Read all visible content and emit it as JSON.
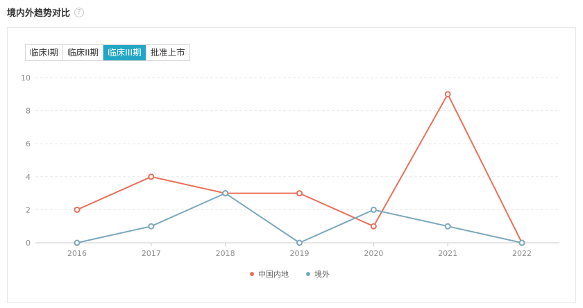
{
  "section": {
    "title": "境内外趋势对比",
    "help_icon": "question-circle-icon"
  },
  "tabs": [
    {
      "label": "临床I期",
      "active": false
    },
    {
      "label": "临床II期",
      "active": false
    },
    {
      "label": "临床III期",
      "active": true
    },
    {
      "label": "批准上市",
      "active": false
    }
  ],
  "colors": {
    "mainland": "#e8705a",
    "overseas": "#7ba7bc",
    "active_tab": "#23a6c6"
  },
  "chart_data": {
    "type": "line",
    "title": "",
    "xlabel": "",
    "ylabel": "",
    "x": [
      "2016",
      "2017",
      "2018",
      "2019",
      "2020",
      "2021",
      "2022"
    ],
    "ylim": [
      0,
      10
    ],
    "yticks": [
      0,
      2,
      4,
      6,
      8,
      10
    ],
    "grid": true,
    "legend_position": "bottom-center",
    "series": [
      {
        "name": "中国内地",
        "color": "#e8705a",
        "values": [
          2,
          4,
          3,
          3,
          1,
          9,
          0
        ]
      },
      {
        "name": "境外",
        "color": "#7ba7bc",
        "values": [
          0,
          1,
          3,
          0,
          2,
          1,
          0
        ]
      }
    ]
  }
}
